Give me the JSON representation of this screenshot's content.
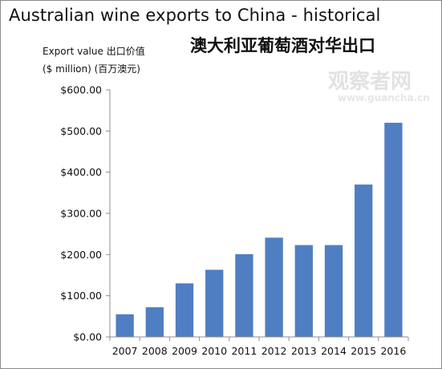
{
  "header": {
    "title": "Australian wine exports to China - historical",
    "subtitle": "澳大利亚葡萄酒对华出口",
    "ylabel_line1": "Export value 出口价值",
    "ylabel_line2": "($ million) (百万澳元)"
  },
  "watermark": {
    "text": "观察者网",
    "sub": "www.guancha.cn"
  },
  "colors": {
    "bar": "#4f7ec2",
    "axis": "#8c8c8c"
  },
  "chart_data": {
    "type": "bar",
    "title": "Australian wine exports to China - historical",
    "subtitle": "澳大利亚葡萄酒对华出口",
    "xlabel": "",
    "ylabel": "Export value 出口价值 ($ million) (百万澳元)",
    "categories": [
      "2007",
      "2008",
      "2009",
      "2010",
      "2011",
      "2012",
      "2013",
      "2014",
      "2015",
      "2016"
    ],
    "values": [
      55,
      72,
      130,
      163,
      201,
      241,
      223,
      223,
      370,
      520
    ],
    "ylim": [
      0,
      600
    ],
    "yticks": [
      0,
      100,
      200,
      300,
      400,
      500,
      600
    ],
    "ytick_labels": [
      "$0.00",
      "$100.00",
      "$200.00",
      "$300.00",
      "$400.00",
      "$500.00",
      "$600.00"
    ],
    "grid": false,
    "legend": "none"
  }
}
